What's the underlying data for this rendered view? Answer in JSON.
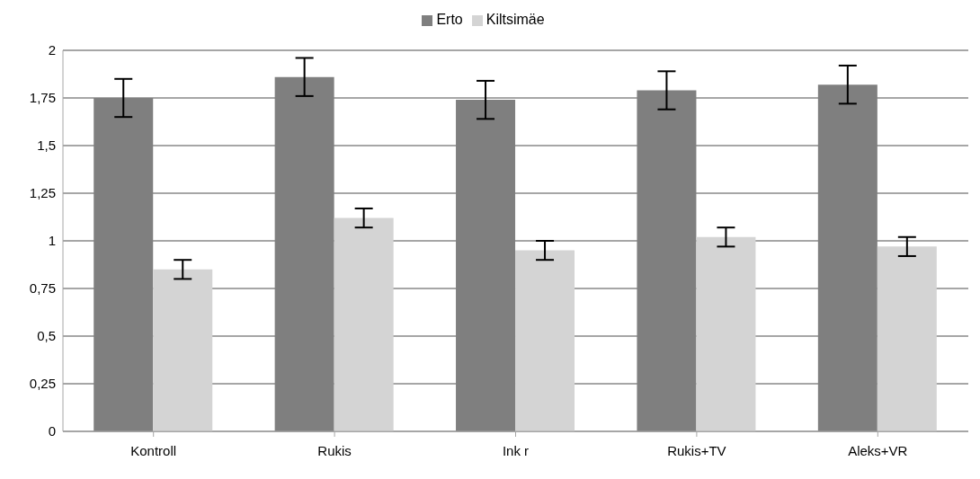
{
  "chart_data": {
    "type": "bar",
    "categories": [
      "Kontroll",
      "Rukis",
      "Ink r",
      "Rukis+TV",
      "Aleks+VR"
    ],
    "series": [
      {
        "name": "Erto",
        "color": "#7f7f7f",
        "values": [
          1.75,
          1.86,
          1.74,
          1.79,
          1.82
        ],
        "errors": [
          0.1,
          0.1,
          0.1,
          0.1,
          0.1
        ]
      },
      {
        "name": "Kiltsimäe",
        "color": "#d4d4d4",
        "values": [
          0.85,
          1.12,
          0.95,
          1.02,
          0.97
        ],
        "errors": [
          0.05,
          0.05,
          0.05,
          0.05,
          0.05
        ]
      }
    ],
    "ylim": [
      0,
      2
    ],
    "yticks": [
      0,
      {
        "value": 0.25,
        "label": "0,25"
      },
      {
        "value": 0.5,
        "label": "0,5"
      },
      {
        "value": 0.75,
        "label": "0,75"
      },
      1,
      {
        "value": 1.25,
        "label": "1,25"
      },
      {
        "value": 1.5,
        "label": "1,5"
      },
      {
        "value": 1.75,
        "label": "1,75"
      },
      2
    ],
    "grid": "y",
    "legend": "top"
  }
}
